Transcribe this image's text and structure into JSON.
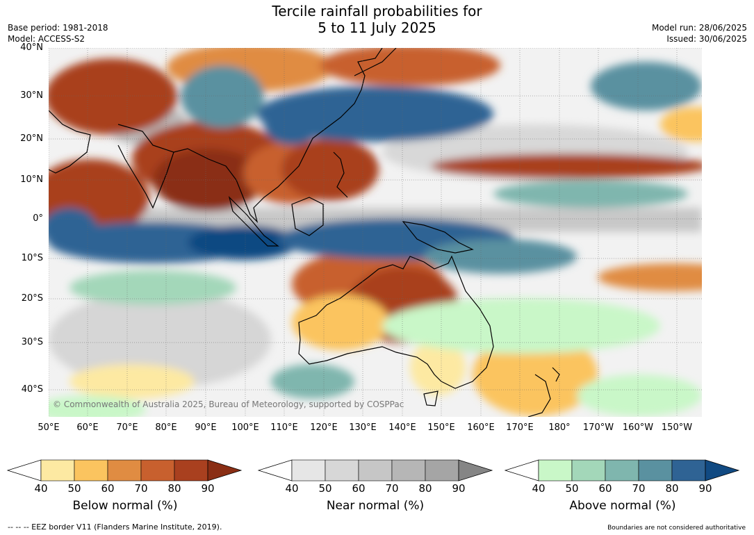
{
  "title": {
    "line1": "Tercile rainfall probabilities for",
    "line2": "5 to 11 July 2025"
  },
  "meta": {
    "base_period": "Base period: 1981-2018",
    "model": "Model: ACCESS-S2",
    "model_run": "Model run: 28/06/2025",
    "issued": "Issued: 30/06/2025"
  },
  "map": {
    "lat_labels": [
      "40°N",
      "30°N",
      "20°N",
      "10°N",
      "0°",
      "10°S",
      "20°S",
      "30°S",
      "40°S"
    ],
    "lon_labels": [
      "50°E",
      "60°E",
      "70°E",
      "80°E",
      "90°E",
      "100°E",
      "110°E",
      "120°E",
      "130°E",
      "140°E",
      "150°E",
      "160°E",
      "170°E",
      "180°",
      "170°W",
      "160°W",
      "150°W"
    ],
    "copyright": "© Commonwealth of Australia 2025, Bureau of Meteorology, supported by COSPPac",
    "ocean_color": "#f2f2f2",
    "coastline_color": "#000000",
    "border_color": "#888888"
  },
  "legends": [
    {
      "title": "Below normal (%)",
      "ticks": [
        "40",
        "50",
        "60",
        "70",
        "80",
        "90"
      ],
      "colors": [
        "#fde9a2",
        "#fbc45f",
        "#e08c42",
        "#c8602e",
        "#a9401f",
        "#8a2e14"
      ]
    },
    {
      "title": "Near normal (%)",
      "ticks": [
        "40",
        "50",
        "60",
        "70",
        "80",
        "90"
      ],
      "colors": [
        "#e6e6e6",
        "#d7d7d7",
        "#c6c6c6",
        "#b6b6b6",
        "#a5a5a5",
        "#858585"
      ]
    },
    {
      "title": "Above normal (%)",
      "ticks": [
        "40",
        "50",
        "60",
        "70",
        "80",
        "90"
      ],
      "colors": [
        "#c9f7c8",
        "#a3d7b9",
        "#7fb6ae",
        "#5a91a0",
        "#2f6394",
        "#114a82"
      ]
    }
  ],
  "footer": {
    "eez": "--  --  -- EEZ border V11 (Flanders Marine Institute, 2019).",
    "disclaimer": "Boundaries are not considered authoritative"
  }
}
